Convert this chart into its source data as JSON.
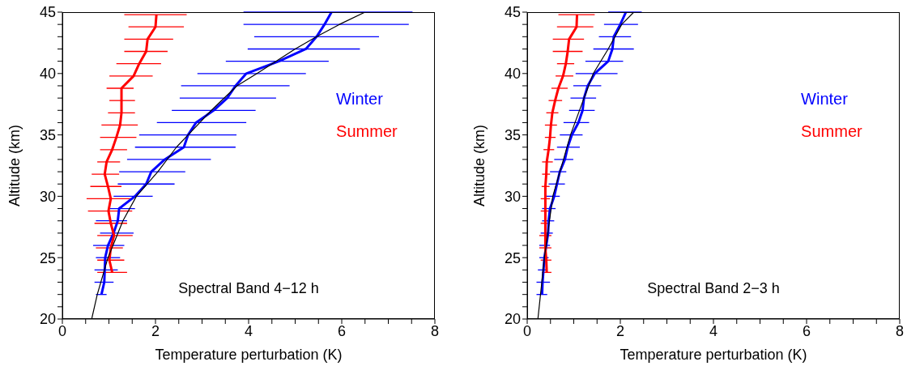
{
  "chart_data": [
    {
      "type": "line",
      "xlabel": "Temperature perturbation (K)",
      "ylabel": "Altitude (km)",
      "annotations": [
        "Spectral Band 4−12 h"
      ],
      "xlim": [
        0,
        8
      ],
      "ylim": [
        20,
        45
      ],
      "xticks": [
        0,
        {
          "value": 0.5,
          "label": null
        },
        {
          "value": 1,
          "label": null
        },
        {
          "value": 1.5,
          "label": null
        },
        2,
        {
          "value": 2.5,
          "label": null
        },
        {
          "value": 3,
          "label": null
        },
        {
          "value": 3.5,
          "label": null
        },
        4,
        {
          "value": 4.5,
          "label": null
        },
        {
          "value": 5,
          "label": null
        },
        {
          "value": 5.5,
          "label": null
        },
        6,
        {
          "value": 6.5,
          "label": null
        },
        {
          "value": 7,
          "label": null
        },
        {
          "value": 7.5,
          "label": null
        },
        8
      ],
      "yticks": [
        20,
        {
          "value": 21,
          "label": null
        },
        {
          "value": 22,
          "label": null
        },
        {
          "value": 23,
          "label": null
        },
        {
          "value": 24,
          "label": null
        },
        25,
        {
          "value": 26,
          "label": null
        },
        {
          "value": 27,
          "label": null
        },
        {
          "value": 28,
          "label": null
        },
        {
          "value": 29,
          "label": null
        },
        30,
        {
          "value": 31,
          "label": null
        },
        {
          "value": 32,
          "label": null
        },
        {
          "value": 33,
          "label": null
        },
        {
          "value": 34,
          "label": null
        },
        35,
        {
          "value": 36,
          "label": null
        },
        {
          "value": 37,
          "label": null
        },
        {
          "value": 38,
          "label": null
        },
        {
          "value": 39,
          "label": null
        },
        40,
        {
          "value": 41,
          "label": null
        },
        {
          "value": 42,
          "label": null
        },
        {
          "value": 43,
          "label": null
        },
        {
          "value": 44,
          "label": null
        },
        45
      ],
      "legend": "right",
      "marker": "none",
      "line_style": "solid",
      "series": [
        {
          "name": "Winter",
          "color": "#0000ff",
          "values": [
            45,
            44,
            43,
            42,
            41,
            40,
            39,
            38,
            37,
            36,
            35,
            34,
            33,
            32,
            31,
            30,
            29,
            28,
            27,
            26,
            25,
            24,
            23,
            22
          ],
          "x": [
            5.78,
            5.63,
            5.46,
            5.23,
            4.65,
            3.95,
            3.72,
            3.54,
            3.25,
            2.87,
            2.7,
            2.61,
            2.2,
            1.91,
            1.8,
            1.56,
            1.22,
            1.19,
            1.1,
            0.98,
            0.92,
            0.91,
            0.9,
            0.84
          ],
          "xerrors": [
            [
              3.89,
              7.52
            ],
            [
              3.89,
              7.44
            ],
            [
              4.12,
              6.8
            ],
            [
              3.98,
              6.39
            ],
            [
              3.51,
              5.72
            ],
            [
              2.9,
              5.23
            ],
            [
              2.55,
              4.88
            ],
            [
              2.52,
              4.59
            ],
            [
              2.35,
              4.15
            ],
            [
              2.03,
              3.95
            ],
            [
              1.65,
              3.74
            ],
            [
              1.56,
              3.72
            ],
            [
              1.39,
              3.19
            ],
            [
              1.22,
              2.64
            ],
            [
              1.19,
              2.41
            ],
            [
              1.1,
              1.94
            ],
            [
              0.98,
              1.56
            ],
            [
              0.72,
              1.39
            ],
            [
              0.81,
              1.53
            ],
            [
              0.66,
              1.33
            ],
            [
              0.72,
              1.24
            ],
            [
              0.69,
              1.19
            ],
            [
              0.69,
              1.1
            ],
            [
              0.72,
              0.95
            ]
          ]
        },
        {
          "name": "Summer",
          "color": "#ff0000",
          "values": [
            44.8,
            43.8,
            42.8,
            41.8,
            40.8,
            39.8,
            38.8,
            37.8,
            36.8,
            35.8,
            34.8,
            33.8,
            32.8,
            31.8,
            30.8,
            29.8,
            28.8,
            27.8,
            26.8,
            25.8,
            24.8,
            23.8
          ],
          "x": [
            2.02,
            2.0,
            1.83,
            1.8,
            1.65,
            1.53,
            1.27,
            1.27,
            1.27,
            1.24,
            1.16,
            1.07,
            0.95,
            0.91,
            0.98,
            1.04,
            0.99,
            1.04,
            1.11,
            1.04,
            1.01,
            1.07
          ],
          "xerrors": [
            [
              1.33,
              2.67
            ],
            [
              1.42,
              2.61
            ],
            [
              1.33,
              2.38
            ],
            [
              1.33,
              2.26
            ],
            [
              1.16,
              2.12
            ],
            [
              1.01,
              1.94
            ],
            [
              0.95,
              1.53
            ],
            [
              1.01,
              1.56
            ],
            [
              0.98,
              1.56
            ],
            [
              0.84,
              1.62
            ],
            [
              0.81,
              1.59
            ],
            [
              0.81,
              1.39
            ],
            [
              0.75,
              1.24
            ],
            [
              0.63,
              1.22
            ],
            [
              0.6,
              1.27
            ],
            [
              0.52,
              1.53
            ],
            [
              0.55,
              1.5
            ],
            [
              0.69,
              1.39
            ],
            [
              0.75,
              1.51
            ],
            [
              0.72,
              1.3
            ],
            [
              0.75,
              1.33
            ],
            [
              0.75,
              1.39
            ]
          ]
        },
        {
          "color": "#000000",
          "values": [
            45,
            44,
            43,
            42,
            40,
            39,
            37,
            35,
            34,
            32,
            30,
            28,
            25,
            22,
            20
          ],
          "x": [
            6.5,
            5.95,
            5.46,
            5.0,
            4.18,
            3.75,
            3.2,
            2.7,
            2.45,
            2.05,
            1.59,
            1.3,
            0.98,
            0.75,
            0.63
          ]
        }
      ]
    },
    {
      "type": "line",
      "xlabel": "Temperature perturbation (K)",
      "ylabel": "Altitude (km)",
      "annotations": [
        "Spectral Band 2−3 h"
      ],
      "xlim": [
        0,
        8
      ],
      "ylim": [
        20,
        45
      ],
      "xticks": [
        0,
        {
          "value": 0.5,
          "label": null
        },
        {
          "value": 1,
          "label": null
        },
        {
          "value": 1.5,
          "label": null
        },
        2,
        {
          "value": 2.5,
          "label": null
        },
        {
          "value": 3,
          "label": null
        },
        {
          "value": 3.5,
          "label": null
        },
        4,
        {
          "value": 4.5,
          "label": null
        },
        {
          "value": 5,
          "label": null
        },
        {
          "value": 5.5,
          "label": null
        },
        6,
        {
          "value": 6.5,
          "label": null
        },
        {
          "value": 7,
          "label": null
        },
        {
          "value": 7.5,
          "label": null
        },
        8
      ],
      "yticks": [
        20,
        {
          "value": 21,
          "label": null
        },
        {
          "value": 22,
          "label": null
        },
        {
          "value": 23,
          "label": null
        },
        {
          "value": 24,
          "label": null
        },
        25,
        {
          "value": 26,
          "label": null
        },
        {
          "value": 27,
          "label": null
        },
        {
          "value": 28,
          "label": null
        },
        {
          "value": 29,
          "label": null
        },
        30,
        {
          "value": 31,
          "label": null
        },
        {
          "value": 32,
          "label": null
        },
        {
          "value": 33,
          "label": null
        },
        {
          "value": 34,
          "label": null
        },
        35,
        {
          "value": 36,
          "label": null
        },
        {
          "value": 37,
          "label": null
        },
        {
          "value": 38,
          "label": null
        },
        {
          "value": 39,
          "label": null
        },
        40,
        {
          "value": 41,
          "label": null
        },
        {
          "value": 42,
          "label": null
        },
        {
          "value": 43,
          "label": null
        },
        {
          "value": 44,
          "label": null
        },
        45
      ],
      "legend": "right",
      "marker": "none",
      "line_style": "solid",
      "series": [
        {
          "name": "Winter",
          "color": "#0000ff",
          "values": [
            45,
            44,
            43,
            42,
            41,
            40,
            39,
            38,
            37,
            36,
            35,
            34,
            33,
            32,
            31,
            30,
            29,
            28,
            27,
            26,
            25,
            24,
            23,
            22
          ],
          "x": [
            2.12,
            2.0,
            1.86,
            1.83,
            1.74,
            1.45,
            1.3,
            1.22,
            1.19,
            1.1,
            0.96,
            0.87,
            0.81,
            0.7,
            0.64,
            0.58,
            0.49,
            0.46,
            0.45,
            0.41,
            0.37,
            0.35,
            0.33,
            0.32
          ],
          "xerrors": [
            [
              1.74,
              2.46
            ],
            [
              1.65,
              2.38
            ],
            [
              1.54,
              2.23
            ],
            [
              1.42,
              2.29
            ],
            [
              1.25,
              2.06
            ],
            [
              1.04,
              1.94
            ],
            [
              0.99,
              1.59
            ],
            [
              0.93,
              1.48
            ],
            [
              0.9,
              1.45
            ],
            [
              0.78,
              1.33
            ],
            [
              0.7,
              1.19
            ],
            [
              0.64,
              1.13
            ],
            [
              0.58,
              0.99
            ],
            [
              0.49,
              0.84
            ],
            [
              0.46,
              0.81
            ],
            [
              0.41,
              0.7
            ],
            [
              0.32,
              0.61
            ],
            [
              0.32,
              0.58
            ],
            [
              0.29,
              0.55
            ],
            [
              0.26,
              0.49
            ],
            [
              0.26,
              0.46
            ],
            [
              0.23,
              0.43
            ],
            [
              0.2,
              0.49
            ],
            [
              0.2,
              0.43
            ]
          ]
        },
        {
          "name": "Summer",
          "color": "#ff0000",
          "values": [
            44.8,
            43.8,
            42.8,
            41.8,
            40.8,
            39.8,
            38.8,
            37.8,
            36.8,
            35.8,
            34.8,
            33.8,
            32.8,
            31.8,
            30.8,
            29.8,
            28.8,
            27.8,
            26.8,
            25.8,
            24.8,
            23.8
          ],
          "x": [
            1.07,
            1.06,
            0.9,
            0.87,
            0.83,
            0.77,
            0.67,
            0.6,
            0.54,
            0.51,
            0.49,
            0.46,
            0.42,
            0.41,
            0.39,
            0.39,
            0.39,
            0.39,
            0.39,
            0.39,
            0.41,
            0.42
          ],
          "xerrors": [
            [
              0.67,
              1.45
            ],
            [
              0.64,
              1.42
            ],
            [
              0.55,
              1.22
            ],
            [
              0.55,
              1.19
            ],
            [
              0.64,
              1.01
            ],
            [
              0.61,
              0.99
            ],
            [
              0.52,
              0.87
            ],
            [
              0.46,
              0.75
            ],
            [
              0.41,
              0.67
            ],
            [
              0.38,
              0.64
            ],
            [
              0.38,
              0.61
            ],
            [
              0.35,
              0.58
            ],
            [
              0.32,
              0.55
            ],
            [
              0.32,
              0.49
            ],
            [
              0.31,
              0.48
            ],
            [
              0.29,
              0.49
            ],
            [
              0.29,
              0.49
            ],
            [
              0.29,
              0.49
            ],
            [
              0.26,
              0.52
            ],
            [
              0.26,
              0.52
            ],
            [
              0.29,
              0.52
            ],
            [
              0.32,
              0.52
            ]
          ]
        },
        {
          "color": "#000000",
          "values": [
            45,
            44,
            42,
            40,
            38,
            35,
            33,
            30,
            25,
            20
          ],
          "x": [
            2.29,
            2.03,
            1.74,
            1.42,
            1.22,
            0.93,
            0.78,
            0.55,
            0.37,
            0.23
          ]
        }
      ]
    }
  ]
}
